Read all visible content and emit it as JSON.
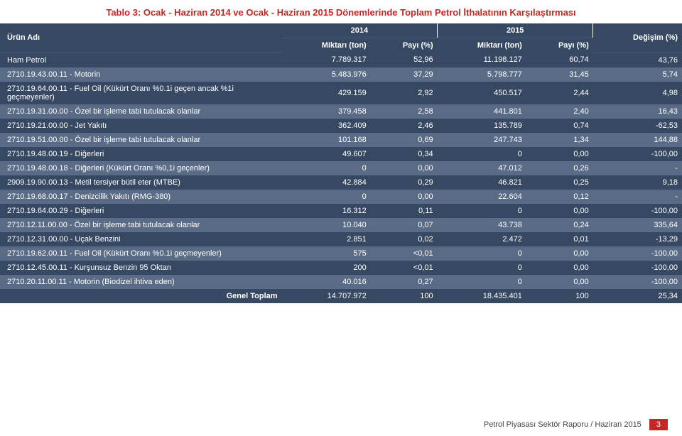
{
  "title": "Tablo 3: Ocak - Haziran 2014 ve Ocak - Haziran 2015 Dönemlerinde Toplam Petrol İthalatının Karşılaştırması",
  "colors": {
    "title": "#c42626",
    "row_dark": "#374862",
    "row_light": "#5a6b85",
    "text": "#ffffff",
    "page_badge": "#c42626"
  },
  "headers": {
    "urun": "Ürün Adı",
    "year2014": "2014",
    "year2015": "2015",
    "miktar": "Miktarı (ton)",
    "payi": "Payı (%)",
    "degisim": "Değişim (%)"
  },
  "rows": [
    {
      "urun": "Ham Petrol",
      "m1": "7.789.317",
      "p1": "52,96",
      "m2": "11.198.127",
      "p2": "60,74",
      "d": "43,76"
    },
    {
      "urun": "2710.19.43.00.11 - Motorin",
      "m1": "5.483.976",
      "p1": "37,29",
      "m2": "5.798.777",
      "p2": "31,45",
      "d": "5,74"
    },
    {
      "urun": "2710.19.64.00.11 - Fuel Oil (Kükürt Oranı %0.1i geçen ancak %1i geçmeyenler)",
      "m1": "429.159",
      "p1": "2,92",
      "m2": "450.517",
      "p2": "2,44",
      "d": "4,98"
    },
    {
      "urun": "2710.19.31.00.00 - Özel bir işleme tabi tutulacak olanlar",
      "m1": "379.458",
      "p1": "2,58",
      "m2": "441.801",
      "p2": "2,40",
      "d": "16,43"
    },
    {
      "urun": "2710.19.21.00.00 - Jet Yakıtı",
      "m1": "362.409",
      "p1": "2,46",
      "m2": "135.789",
      "p2": "0,74",
      "d": "-62,53"
    },
    {
      "urun": "2710.19.51.00.00 - Özel bir işleme tabi tutulacak olanlar",
      "m1": "101.168",
      "p1": "0,69",
      "m2": "247.743",
      "p2": "1,34",
      "d": "144,88"
    },
    {
      "urun": "2710.19.48.00.19 - Diğerleri",
      "m1": "49.607",
      "p1": "0,34",
      "m2": "0",
      "p2": "0,00",
      "d": "-100,00"
    },
    {
      "urun": "2710.19.48.00.18 - Diğerleri (Kükürt Oranı %0,1i geçenler)",
      "m1": "0",
      "p1": "0,00",
      "m2": "47.012",
      "p2": "0,26",
      "d": "-"
    },
    {
      "urun": "2909.19.90.00.13 - Metil tersiyer bütil eter (MTBE)",
      "m1": "42.884",
      "p1": "0,29",
      "m2": "46.821",
      "p2": "0,25",
      "d": "9,18"
    },
    {
      "urun": "2710.19.68.00.17 - Denizcilik Yakıtı (RMG-380)",
      "m1": "0",
      "p1": "0,00",
      "m2": "22.604",
      "p2": "0,12",
      "d": "-"
    },
    {
      "urun": "2710.19.64.00.29 - Diğerleri",
      "m1": "16.312",
      "p1": "0,11",
      "m2": "0",
      "p2": "0,00",
      "d": "-100,00"
    },
    {
      "urun": "2710.12.11.00.00 - Özel bir işleme tabi tutulacak olanlar",
      "m1": "10.040",
      "p1": "0,07",
      "m2": "43.738",
      "p2": "0,24",
      "d": "335,64"
    },
    {
      "urun": "2710.12.31.00.00 - Uçak Benzini",
      "m1": "2.851",
      "p1": "0,02",
      "m2": "2.472",
      "p2": "0,01",
      "d": "-13,29"
    },
    {
      "urun": "2710.19.62.00.11 - Fuel Oil (Kükürt Oranı %0.1i geçmeyenler)",
      "m1": "575",
      "p1": "<0,01",
      "m2": "0",
      "p2": "0,00",
      "d": "-100,00"
    },
    {
      "urun": "2710.12.45.00.11 - Kurşunsuz Benzin 95 Oktan",
      "m1": "200",
      "p1": "<0,01",
      "m2": "0",
      "p2": "0,00",
      "d": "-100,00"
    },
    {
      "urun": "2710.20.11.00.11 - Motorin (Biodizel ihtiva eden)",
      "m1": "40.016",
      "p1": "0,27",
      "m2": "0",
      "p2": "0,00",
      "d": "-100,00"
    }
  ],
  "total": {
    "label": "Genel Toplam",
    "m1": "14.707.972",
    "p1": "100",
    "m2": "18.435.401",
    "p2": "100",
    "d": "25,34"
  },
  "footer": {
    "text": "Petrol Piyasası Sektör Raporu / Haziran 2015",
    "page": "3"
  }
}
